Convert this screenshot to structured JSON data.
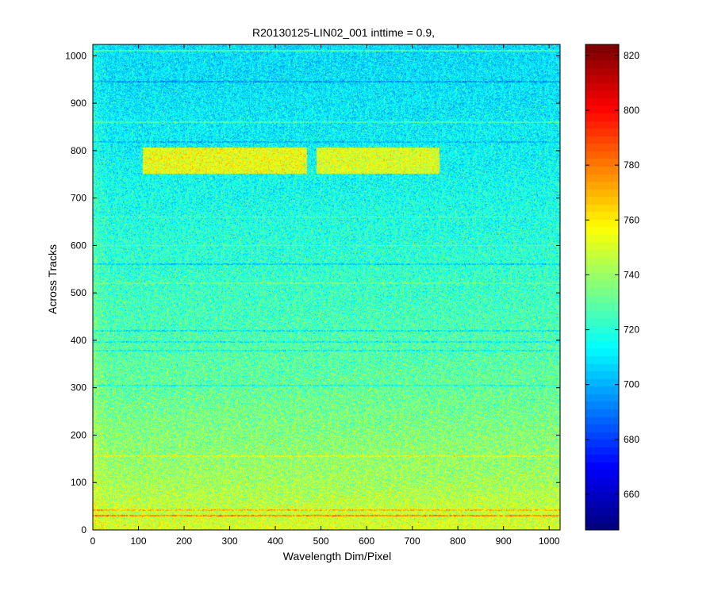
{
  "chart_data": {
    "type": "heatmap",
    "title": "R20130125-LIN02_001 inttime = 0.9,",
    "xlabel": "Wavelength Dim/Pixel",
    "ylabel": "Across Tracks",
    "xlim": [
      0,
      1024
    ],
    "ylim": [
      0,
      1024
    ],
    "x_ticks": [
      0,
      100,
      200,
      300,
      400,
      500,
      600,
      700,
      800,
      900,
      1000
    ],
    "y_ticks": [
      0,
      100,
      200,
      300,
      400,
      500,
      600,
      700,
      800,
      900,
      1000
    ],
    "colormap": "jet",
    "color_range": [
      647,
      824
    ],
    "colorbar_ticks": [
      660,
      680,
      700,
      720,
      740,
      760,
      780,
      800,
      820
    ],
    "background_gradient": [
      {
        "row": 0,
        "value": 752
      },
      {
        "row": 100,
        "value": 742
      },
      {
        "row": 300,
        "value": 731
      },
      {
        "row": 500,
        "value": 724
      },
      {
        "row": 700,
        "value": 717
      },
      {
        "row": 850,
        "value": 712
      },
      {
        "row": 1024,
        "value": 708
      }
    ],
    "bright_bands": [
      {
        "rows": [
          752,
          806
        ],
        "cols": [
          110,
          470
        ],
        "value": 755
      },
      {
        "rows": [
          752,
          806
        ],
        "cols": [
          490,
          760
        ],
        "value": 752
      }
    ],
    "dark_rows": [
      {
        "row": 945,
        "value": 690
      },
      {
        "row": 818,
        "value": 698
      },
      {
        "row": 560,
        "value": 700
      },
      {
        "row": 420,
        "value": 705
      },
      {
        "row": 396,
        "value": 708
      },
      {
        "row": 378,
        "value": 710
      },
      {
        "row": 304,
        "value": 712
      }
    ],
    "hot_rows": [
      {
        "row": 30,
        "value": 790
      },
      {
        "row": 42,
        "value": 778
      },
      {
        "row": 155,
        "value": 760
      }
    ],
    "bright_rows": [
      {
        "row": 1010,
        "value": 735
      },
      {
        "row": 860,
        "value": 732
      },
      {
        "row": 660,
        "value": 740
      },
      {
        "row": 600,
        "value": 738
      },
      {
        "row": 520,
        "value": 736
      }
    ],
    "noise_amplitude": 16,
    "grid": false
  }
}
